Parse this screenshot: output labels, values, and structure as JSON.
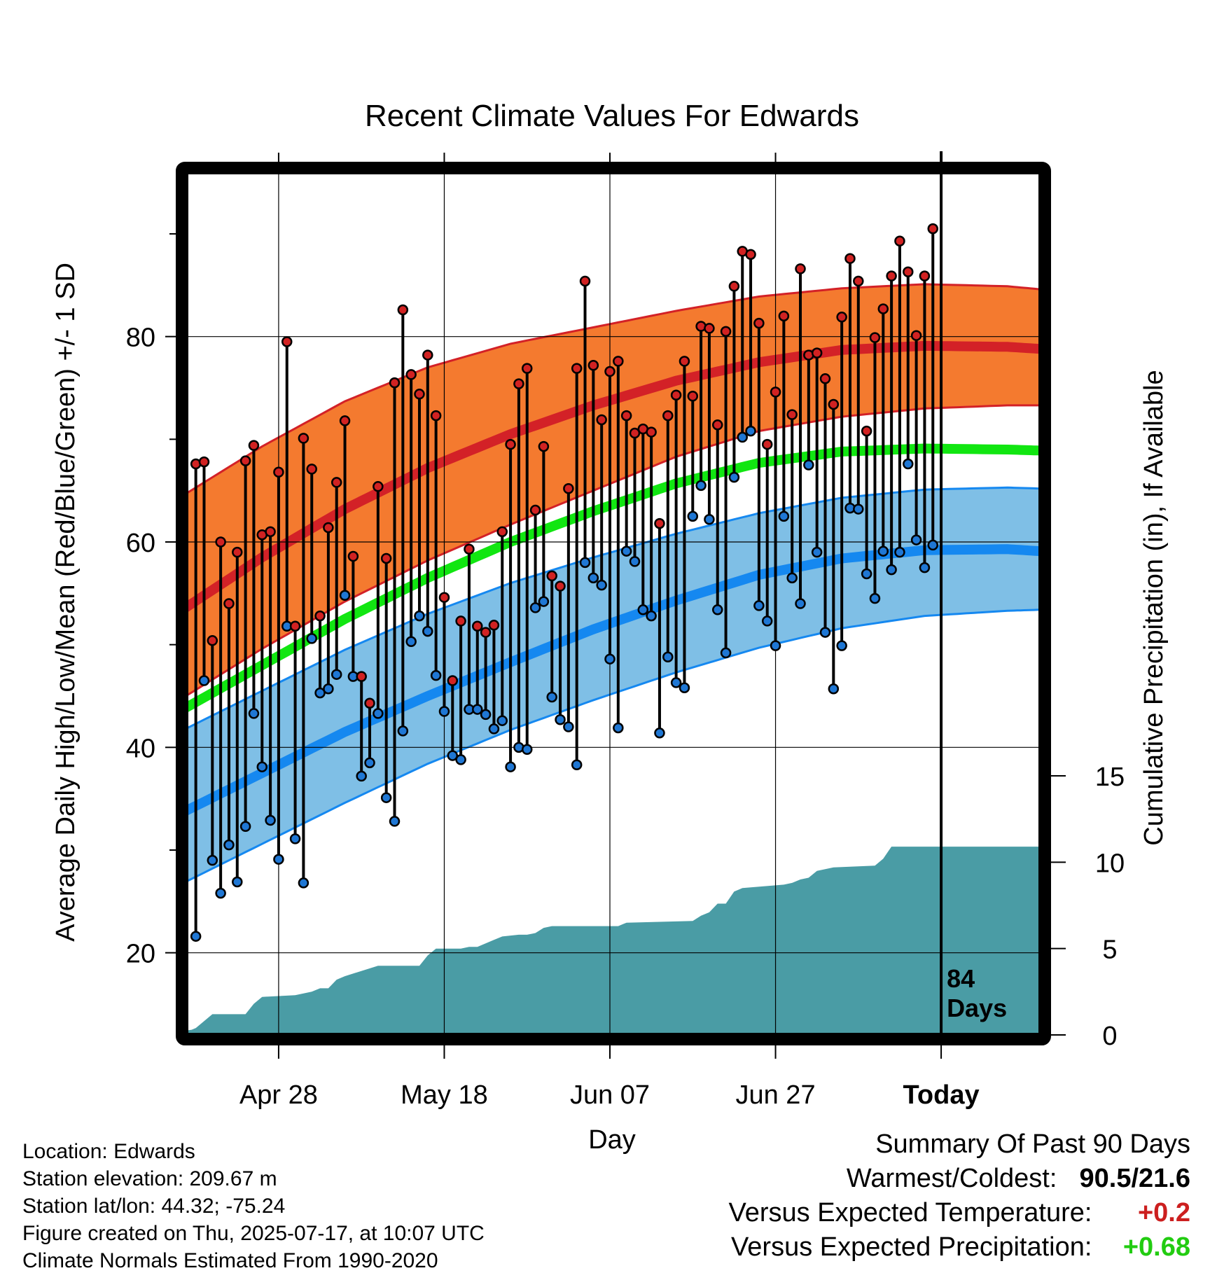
{
  "chart_data": {
    "type": "line",
    "title": "Recent Climate Values For Edwards",
    "xlabel": "Day",
    "ylabel": "Average Daily High/Low/Mean (Red/Blue/Green) +/- 1 SD",
    "y2label": "Cumulative Precipitation (in), If Available",
    "x_tick_labels": [
      "Apr 28",
      "May 18",
      "Jun 07",
      "Jun 27",
      "Today"
    ],
    "x_tick_days": [
      12,
      32,
      52,
      72,
      92
    ],
    "xlim": [
      0,
      104
    ],
    "y_ticks": [
      "20",
      "40",
      "60",
      "80"
    ],
    "ylim": [
      12,
      96
    ],
    "y2_ticks": [
      "0",
      "5",
      "10",
      "15"
    ],
    "y2lim": [
      0,
      15
    ],
    "today_day": 92,
    "days_annotation": [
      "84",
      "Days"
    ],
    "normals": {
      "days": [
        0,
        10,
        20,
        30,
        40,
        50,
        60,
        70,
        80,
        90,
        100,
        104
      ],
      "high_mean": [
        53.2,
        58.5,
        63.2,
        67.2,
        70.5,
        73.3,
        75.7,
        77.5,
        78.7,
        79.1,
        79.0,
        78.8
      ],
      "high_upper": [
        64.3,
        69.3,
        73.7,
        77.0,
        79.3,
        80.9,
        82.5,
        83.9,
        84.7,
        85.1,
        84.9,
        84.6
      ],
      "high_lower": [
        44.6,
        49.6,
        54.2,
        58.2,
        61.7,
        65.0,
        68.3,
        70.8,
        72.2,
        73.0,
        73.3,
        73.3
      ],
      "mean": [
        43.5,
        48.0,
        52.5,
        56.5,
        60.0,
        63.0,
        65.7,
        67.7,
        68.8,
        69.1,
        69.0,
        68.9
      ],
      "low_mean": [
        33.5,
        37.5,
        41.5,
        45.0,
        48.3,
        51.5,
        54.3,
        56.8,
        58.4,
        59.2,
        59.3,
        59.1
      ],
      "low_upper": [
        41.5,
        45.5,
        49.5,
        53.0,
        56.0,
        58.5,
        60.8,
        62.8,
        64.3,
        65.1,
        65.3,
        65.2
      ],
      "low_lower": [
        26.6,
        30.6,
        34.6,
        38.4,
        41.7,
        44.6,
        47.3,
        49.7,
        51.6,
        52.8,
        53.3,
        53.4
      ]
    },
    "daily_high": [
      67.6,
      67.8,
      50.4,
      60.0,
      54.0,
      59.0,
      67.9,
      69.4,
      60.7,
      61.0,
      66.8,
      79.5,
      51.8,
      70.1,
      67.1,
      52.8,
      61.4,
      65.8,
      71.8,
      58.6,
      46.9,
      44.3,
      65.4,
      58.4,
      75.5,
      82.6,
      76.3,
      74.4,
      78.2,
      72.3,
      54.6,
      46.5,
      52.3,
      59.3,
      51.8,
      51.2,
      51.9,
      61.0,
      69.5,
      75.4,
      76.9,
      63.1,
      69.3,
      56.7,
      55.7,
      65.2,
      76.9,
      85.4,
      77.2,
      71.9,
      76.6,
      77.6,
      72.3,
      70.6,
      71.0,
      70.7,
      61.8,
      72.3,
      74.3,
      77.6,
      74.2,
      81.0,
      80.8,
      71.4,
      80.5,
      84.9,
      88.3,
      88.0,
      81.3,
      69.5,
      74.6,
      82.0,
      72.4,
      86.6,
      78.2,
      78.4,
      75.9,
      73.4,
      81.9,
      87.6,
      85.4,
      70.8,
      79.9,
      82.7,
      85.9,
      89.3,
      86.3,
      80.1,
      85.9,
      90.5
    ],
    "daily_low": [
      21.6,
      46.5,
      29.0,
      25.8,
      30.5,
      26.9,
      32.3,
      43.3,
      38.1,
      32.9,
      29.1,
      51.8,
      31.1,
      26.8,
      50.6,
      45.3,
      45.7,
      47.1,
      54.8,
      46.9,
      37.2,
      38.5,
      43.3,
      35.1,
      32.8,
      41.6,
      50.3,
      52.8,
      51.3,
      47.0,
      43.5,
      39.2,
      38.8,
      43.7,
      43.7,
      43.2,
      41.8,
      42.6,
      38.1,
      40.0,
      39.8,
      53.6,
      54.2,
      44.9,
      42.7,
      42.0,
      38.3,
      58.0,
      56.5,
      55.8,
      48.6,
      41.9,
      59.1,
      58.1,
      53.4,
      52.8,
      41.4,
      48.8,
      46.3,
      45.8,
      62.5,
      65.5,
      62.2,
      53.4,
      49.2,
      66.3,
      70.2,
      70.8,
      53.8,
      52.3,
      49.9,
      62.5,
      56.5,
      54.0,
      67.5,
      59.0,
      51.2,
      45.7,
      49.9,
      63.3,
      63.2,
      56.9,
      54.5,
      59.1,
      57.3,
      59.0,
      67.6,
      60.2,
      57.5,
      59.7
    ],
    "cumulative_precip": {
      "days": [
        0,
        1.5,
        2,
        3,
        4,
        8,
        9,
        10,
        14,
        16,
        17,
        18,
        19,
        20,
        24,
        29,
        30,
        31,
        34,
        35,
        36,
        37,
        38,
        39,
        41,
        42,
        43,
        44,
        45,
        46,
        52,
        53,
        54,
        62,
        63,
        64,
        65,
        66,
        67,
        68,
        73,
        74,
        75,
        76,
        77,
        78,
        79,
        84,
        85,
        86,
        87,
        91,
        95,
        99,
        104
      ],
      "values": [
        0.2,
        0.3,
        0.4,
        0.8,
        1.2,
        1.2,
        1.8,
        2.2,
        2.3,
        2.5,
        2.7,
        2.7,
        3.2,
        3.4,
        4.0,
        4.0,
        4.6,
        5.0,
        5.0,
        5.1,
        5.1,
        5.3,
        5.5,
        5.7,
        5.8,
        5.8,
        5.9,
        6.2,
        6.3,
        6.3,
        6.3,
        6.3,
        6.5,
        6.6,
        6.9,
        7.1,
        7.6,
        7.6,
        8.3,
        8.5,
        8.7,
        8.8,
        9.0,
        9.1,
        9.5,
        9.6,
        9.7,
        9.8,
        10.2,
        10.9,
        10.9,
        10.9,
        10.9,
        10.9,
        10.9
      ]
    },
    "colors": {
      "high_band": "#f47a2f",
      "high_line": "#d32127",
      "mean_line": "#11e611",
      "low_band": "#7fbfe6",
      "low_line": "#1588f0",
      "precip": "#4a9ca5",
      "high_dot": "#d12222",
      "low_dot": "#1f77d4"
    }
  },
  "info": {
    "location": "Location: Edwards",
    "elevation": "Station elevation: 209.67 m",
    "latlon": "Station lat/lon: 44.32; -75.24",
    "created": "Figure created on Thu, 2025-07-17, at 10:07 UTC",
    "normals": "Climate Normals Estimated From 1990-2020"
  },
  "summary": {
    "heading": "Summary Of Past 90 Days",
    "warmest_label": "Warmest/Coldest:",
    "warmest_value": "90.5/21.6",
    "temp_label": "Versus Expected Temperature:",
    "temp_value": "+0.2",
    "precip_label": "Versus Expected Precipitation:",
    "precip_value": "+0.68"
  }
}
